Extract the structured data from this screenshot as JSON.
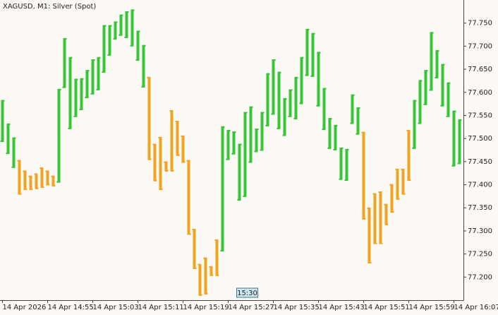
{
  "chart_data": {
    "type": "ohlc",
    "title": "XAGUSD, M1:  Silver (Spot)",
    "crosshair_label": "15:30",
    "up_color": "#34c634",
    "down_color": "#f5a31f",
    "ylim": [
      77.15,
      77.8
    ],
    "yticks": [
      {
        "value": 77.2,
        "label": "77.200"
      },
      {
        "value": 77.25,
        "label": "77.250"
      },
      {
        "value": 77.3,
        "label": "77.300"
      },
      {
        "value": 77.35,
        "label": "77.350"
      },
      {
        "value": 77.4,
        "label": "77.400"
      },
      {
        "value": 77.45,
        "label": "77.450"
      },
      {
        "value": 77.5,
        "label": "77.500"
      },
      {
        "value": 77.55,
        "label": "77.550"
      },
      {
        "value": 77.6,
        "label": "77.600"
      },
      {
        "value": 77.65,
        "label": "77.650"
      },
      {
        "value": 77.7,
        "label": "77.700"
      },
      {
        "value": 77.75,
        "label": "77.750"
      }
    ],
    "categories": [
      "14 Apr 2026",
      null,
      null,
      null,
      null,
      null,
      null,
      null,
      "14 Apr 14:55",
      null,
      null,
      null,
      null,
      null,
      null,
      null,
      "14 Apr 15:03",
      null,
      null,
      null,
      null,
      null,
      null,
      null,
      "14 Apr 15:11",
      null,
      null,
      null,
      null,
      null,
      null,
      null,
      "14 Apr 15:19",
      null,
      null,
      null,
      null,
      null,
      null,
      null,
      "14 Apr 15:27",
      null,
      null,
      null,
      null,
      null,
      null,
      null,
      "14 Apr 15:35",
      null,
      null,
      null,
      null,
      null,
      null,
      null,
      "14 Apr 15:43",
      null,
      null,
      null,
      null,
      null,
      null,
      null,
      "14 Apr 15:51",
      null,
      null,
      null,
      null,
      null,
      null,
      null,
      "14 Apr 15:59",
      null,
      null,
      null,
      null,
      null,
      null,
      null,
      "14 Apr 16:07",
      null
    ],
    "high": [
      77.582,
      77.531,
      77.501,
      77.452,
      77.429,
      77.418,
      77.423,
      77.436,
      77.429,
      77.418,
      77.606,
      77.716,
      77.675,
      77.628,
      77.629,
      77.647,
      77.67,
      77.675,
      77.744,
      77.744,
      77.752,
      77.767,
      77.774,
      77.778,
      77.732,
      77.701,
      77.632,
      77.487,
      77.502,
      77.449,
      77.56,
      77.537,
      77.505,
      77.452,
      77.303,
      77.227,
      77.241,
      77.222,
      77.28,
      77.525,
      77.517,
      77.514,
      77.487,
      77.556,
      77.568,
      77.52,
      77.556,
      77.64,
      77.67,
      77.643,
      77.586,
      77.605,
      77.632,
      77.675,
      77.736,
      77.727,
      77.686,
      77.608,
      77.543,
      77.528,
      77.479,
      77.476,
      77.594,
      77.566,
      77.513,
      77.349,
      77.38,
      77.384,
      77.357,
      77.4,
      77.433,
      77.433,
      77.517,
      77.582,
      77.625,
      77.647,
      77.729,
      77.69,
      77.66,
      77.62,
      77.559,
      77.54
    ],
    "low": [
      77.494,
      77.468,
      77.438,
      77.38,
      77.39,
      77.39,
      77.392,
      77.395,
      77.4,
      77.398,
      77.406,
      77.611,
      77.522,
      77.548,
      77.563,
      77.589,
      77.597,
      77.606,
      77.644,
      77.681,
      77.716,
      77.724,
      77.719,
      77.701,
      77.67,
      77.612,
      77.455,
      77.409,
      77.39,
      77.43,
      77.43,
      77.464,
      77.449,
      77.293,
      77.219,
      77.161,
      77.164,
      77.204,
      77.204,
      77.257,
      77.455,
      77.467,
      77.367,
      77.375,
      77.449,
      77.472,
      77.475,
      77.528,
      77.553,
      77.522,
      77.507,
      77.548,
      77.543,
      77.576,
      77.637,
      77.635,
      77.571,
      77.52,
      77.479,
      77.476,
      77.412,
      77.41,
      77.533,
      77.51,
      77.326,
      77.231,
      77.273,
      77.273,
      77.314,
      77.341,
      77.369,
      77.38,
      77.41,
      77.479,
      77.533,
      77.574,
      77.605,
      77.632,
      77.571,
      77.548,
      77.441,
      77.446
    ],
    "open": [
      77.494,
      77.468,
      77.438,
      77.452,
      77.429,
      77.418,
      77.423,
      77.436,
      77.429,
      77.418,
      77.406,
      77.611,
      77.522,
      77.548,
      77.563,
      77.589,
      77.597,
      77.606,
      77.644,
      77.681,
      77.716,
      77.724,
      77.719,
      77.701,
      77.67,
      77.612,
      77.632,
      77.487,
      77.502,
      77.449,
      77.56,
      77.537,
      77.505,
      77.452,
      77.303,
      77.227,
      77.241,
      77.222,
      77.28,
      77.257,
      77.455,
      77.467,
      77.367,
      77.375,
      77.449,
      77.472,
      77.475,
      77.528,
      77.553,
      77.522,
      77.507,
      77.548,
      77.543,
      77.576,
      77.637,
      77.635,
      77.571,
      77.52,
      77.479,
      77.476,
      77.412,
      77.41,
      77.533,
      77.51,
      77.513,
      77.349,
      77.38,
      77.384,
      77.357,
      77.4,
      77.433,
      77.433,
      77.517,
      77.479,
      77.533,
      77.574,
      77.605,
      77.632,
      77.571,
      77.548,
      77.441,
      77.446
    ],
    "close": [
      77.582,
      77.531,
      77.501,
      77.38,
      77.39,
      77.39,
      77.392,
      77.395,
      77.4,
      77.398,
      77.606,
      77.716,
      77.675,
      77.628,
      77.629,
      77.647,
      77.67,
      77.675,
      77.744,
      77.744,
      77.752,
      77.767,
      77.774,
      77.778,
      77.732,
      77.701,
      77.455,
      77.409,
      77.39,
      77.43,
      77.43,
      77.464,
      77.449,
      77.293,
      77.219,
      77.161,
      77.164,
      77.204,
      77.204,
      77.525,
      77.517,
      77.514,
      77.487,
      77.556,
      77.568,
      77.52,
      77.556,
      77.64,
      77.67,
      77.643,
      77.586,
      77.605,
      77.632,
      77.675,
      77.736,
      77.727,
      77.686,
      77.608,
      77.543,
      77.528,
      77.479,
      77.476,
      77.594,
      77.566,
      77.326,
      77.231,
      77.273,
      77.273,
      77.314,
      77.341,
      77.369,
      77.38,
      77.41,
      77.582,
      77.625,
      77.647,
      77.729,
      77.69,
      77.66,
      77.62,
      77.559,
      77.54
    ]
  }
}
